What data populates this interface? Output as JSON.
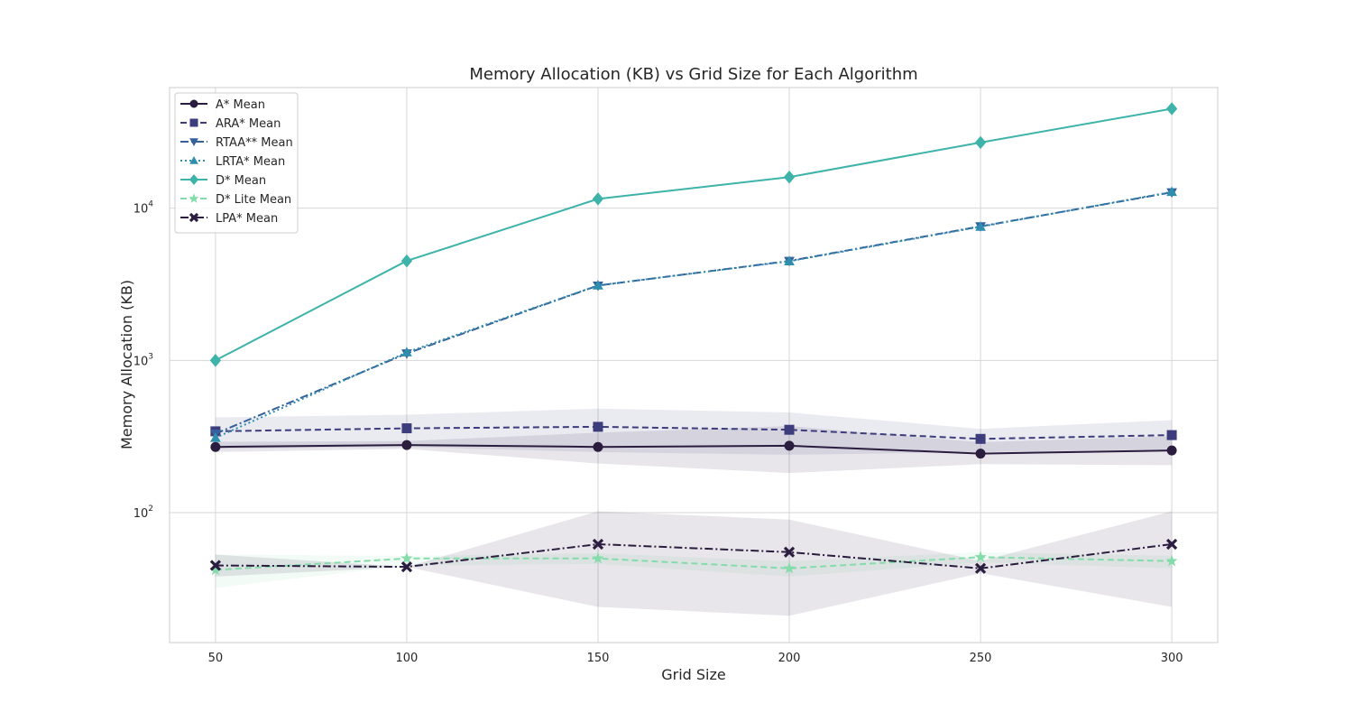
{
  "chart_data": {
    "type": "line",
    "title": "Memory Allocation (KB) vs Grid Size for Each Algorithm",
    "xlabel": "Grid Size",
    "ylabel": "Memory Allocation (KB)",
    "y_scale": "log",
    "ylim": [
      14,
      62000
    ],
    "xlim": [
      38,
      312
    ],
    "grid": true,
    "legend_position": "top-left",
    "x": [
      50,
      100,
      150,
      200,
      250,
      300
    ],
    "x_tick_labels": [
      "50",
      "100",
      "150",
      "200",
      "250",
      "300"
    ],
    "y_ticks": [
      {
        "value": 100,
        "base": "10",
        "exp": "2"
      },
      {
        "value": 1000,
        "base": "10",
        "exp": "3"
      },
      {
        "value": 10000,
        "base": "10",
        "exp": "4"
      }
    ],
    "series": [
      {
        "name": "A* Mean",
        "color": "#2b1d3f",
        "dash": "",
        "marker": "circle",
        "values": [
          270,
          278,
          270,
          275,
          244,
          256
        ],
        "band": {
          "lower": [
            250,
            262,
            210,
            182,
            208,
            205
          ],
          "upper": [
            292,
            295,
            335,
            370,
            290,
            318
          ],
          "color": "#2b1d3f"
        }
      },
      {
        "name": "ARA* Mean",
        "color": "#3d3d7d",
        "dash": "7,4",
        "marker": "square",
        "values": [
          342,
          358,
          366,
          350,
          305,
          323
        ],
        "band": {
          "lower": [
            262,
            270,
            250,
            240,
            250,
            260
          ],
          "upper": [
            422,
            440,
            482,
            455,
            355,
            405
          ],
          "color": "#3d3d7d"
        }
      },
      {
        "name": "RTAA** Mean",
        "color": "#35609b",
        "dash": "9,3,2,3",
        "marker": "triangle-down",
        "values": [
          330,
          1110,
          3100,
          4500,
          7600,
          12700
        ]
      },
      {
        "name": "LRTA* Mean",
        "color": "#2f8eae",
        "dash": "2,3",
        "marker": "triangle-up",
        "values": [
          310,
          1130,
          3110,
          4480,
          7550,
          12800
        ]
      },
      {
        "name": "D* Mean",
        "color": "#3eb3a9",
        "dash": "",
        "marker": "diamond",
        "values": [
          1000,
          4500,
          11500,
          16000,
          27000,
          45000
        ]
      },
      {
        "name": "D* Lite Mean",
        "color": "#85dcab",
        "dash": "7,4",
        "marker": "star",
        "values": [
          42,
          50,
          50,
          43,
          51,
          48
        ],
        "band": {
          "lower": [
            32,
            45,
            46,
            38,
            47,
            43
          ],
          "upper": [
            53,
            52,
            54,
            48,
            55,
            52
          ],
          "color": "#85dcab"
        }
      },
      {
        "name": "LPA* Mean",
        "color": "#2b1d3f",
        "dash": "9,3,2,3",
        "marker": "x",
        "values": [
          45,
          44,
          62,
          55,
          43,
          62
        ],
        "band": {
          "lower": [
            38,
            44,
            24,
            21,
            40,
            24
          ],
          "upper": [
            53,
            44,
            102,
            90,
            48,
            102
          ],
          "color": "#2b1d3f"
        }
      }
    ]
  }
}
